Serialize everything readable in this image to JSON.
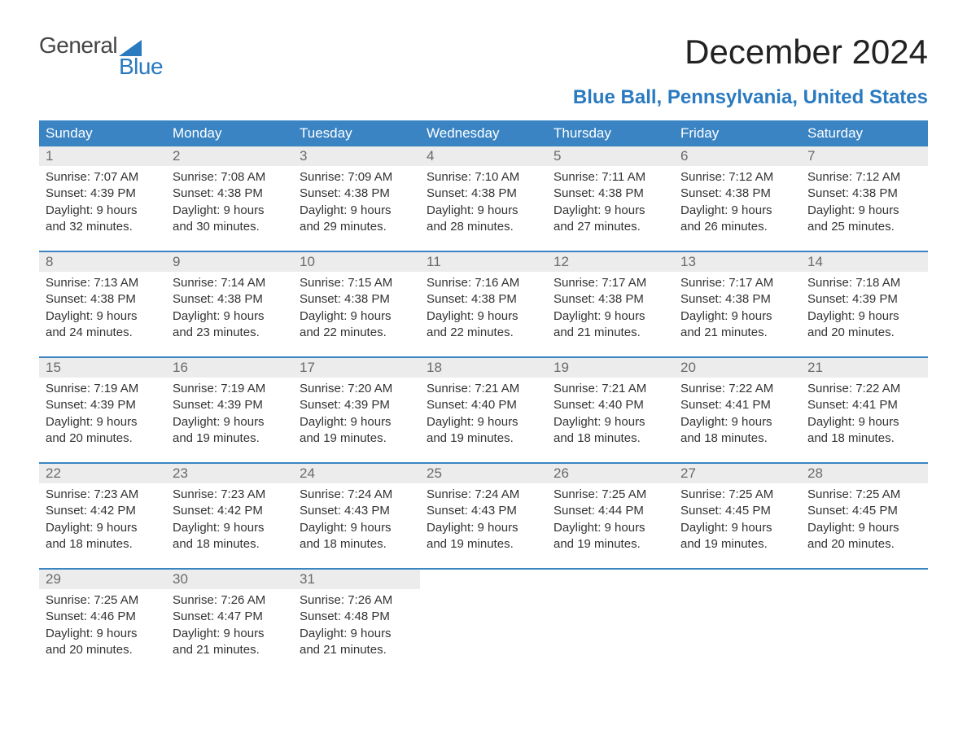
{
  "brand": {
    "top": "General",
    "bottom": "Blue",
    "brand_color": "#2a7ac0"
  },
  "title": "December 2024",
  "subtitle": "Blue Ball, Pennsylvania, United States",
  "colors": {
    "header_bg": "#3a84c4",
    "header_text": "#ffffff",
    "daynum_bg": "#ececec",
    "daynum_text": "#6a6a6a",
    "body_text": "#333333",
    "week_border": "#3a84c4"
  },
  "typography": {
    "title_fontsize": 42,
    "subtitle_fontsize": 24,
    "header_fontsize": 17,
    "daynum_fontsize": 17,
    "body_fontsize": 15,
    "logo_fontsize": 28
  },
  "weekdays": [
    "Sunday",
    "Monday",
    "Tuesday",
    "Wednesday",
    "Thursday",
    "Friday",
    "Saturday"
  ],
  "weeks": [
    [
      {
        "n": "1",
        "sr": "Sunrise: 7:07 AM",
        "ss": "Sunset: 4:39 PM",
        "d1": "Daylight: 9 hours",
        "d2": "and 32 minutes."
      },
      {
        "n": "2",
        "sr": "Sunrise: 7:08 AM",
        "ss": "Sunset: 4:38 PM",
        "d1": "Daylight: 9 hours",
        "d2": "and 30 minutes."
      },
      {
        "n": "3",
        "sr": "Sunrise: 7:09 AM",
        "ss": "Sunset: 4:38 PM",
        "d1": "Daylight: 9 hours",
        "d2": "and 29 minutes."
      },
      {
        "n": "4",
        "sr": "Sunrise: 7:10 AM",
        "ss": "Sunset: 4:38 PM",
        "d1": "Daylight: 9 hours",
        "d2": "and 28 minutes."
      },
      {
        "n": "5",
        "sr": "Sunrise: 7:11 AM",
        "ss": "Sunset: 4:38 PM",
        "d1": "Daylight: 9 hours",
        "d2": "and 27 minutes."
      },
      {
        "n": "6",
        "sr": "Sunrise: 7:12 AM",
        "ss": "Sunset: 4:38 PM",
        "d1": "Daylight: 9 hours",
        "d2": "and 26 minutes."
      },
      {
        "n": "7",
        "sr": "Sunrise: 7:12 AM",
        "ss": "Sunset: 4:38 PM",
        "d1": "Daylight: 9 hours",
        "d2": "and 25 minutes."
      }
    ],
    [
      {
        "n": "8",
        "sr": "Sunrise: 7:13 AM",
        "ss": "Sunset: 4:38 PM",
        "d1": "Daylight: 9 hours",
        "d2": "and 24 minutes."
      },
      {
        "n": "9",
        "sr": "Sunrise: 7:14 AM",
        "ss": "Sunset: 4:38 PM",
        "d1": "Daylight: 9 hours",
        "d2": "and 23 minutes."
      },
      {
        "n": "10",
        "sr": "Sunrise: 7:15 AM",
        "ss": "Sunset: 4:38 PM",
        "d1": "Daylight: 9 hours",
        "d2": "and 22 minutes."
      },
      {
        "n": "11",
        "sr": "Sunrise: 7:16 AM",
        "ss": "Sunset: 4:38 PM",
        "d1": "Daylight: 9 hours",
        "d2": "and 22 minutes."
      },
      {
        "n": "12",
        "sr": "Sunrise: 7:17 AM",
        "ss": "Sunset: 4:38 PM",
        "d1": "Daylight: 9 hours",
        "d2": "and 21 minutes."
      },
      {
        "n": "13",
        "sr": "Sunrise: 7:17 AM",
        "ss": "Sunset: 4:38 PM",
        "d1": "Daylight: 9 hours",
        "d2": "and 21 minutes."
      },
      {
        "n": "14",
        "sr": "Sunrise: 7:18 AM",
        "ss": "Sunset: 4:39 PM",
        "d1": "Daylight: 9 hours",
        "d2": "and 20 minutes."
      }
    ],
    [
      {
        "n": "15",
        "sr": "Sunrise: 7:19 AM",
        "ss": "Sunset: 4:39 PM",
        "d1": "Daylight: 9 hours",
        "d2": "and 20 minutes."
      },
      {
        "n": "16",
        "sr": "Sunrise: 7:19 AM",
        "ss": "Sunset: 4:39 PM",
        "d1": "Daylight: 9 hours",
        "d2": "and 19 minutes."
      },
      {
        "n": "17",
        "sr": "Sunrise: 7:20 AM",
        "ss": "Sunset: 4:39 PM",
        "d1": "Daylight: 9 hours",
        "d2": "and 19 minutes."
      },
      {
        "n": "18",
        "sr": "Sunrise: 7:21 AM",
        "ss": "Sunset: 4:40 PM",
        "d1": "Daylight: 9 hours",
        "d2": "and 19 minutes."
      },
      {
        "n": "19",
        "sr": "Sunrise: 7:21 AM",
        "ss": "Sunset: 4:40 PM",
        "d1": "Daylight: 9 hours",
        "d2": "and 18 minutes."
      },
      {
        "n": "20",
        "sr": "Sunrise: 7:22 AM",
        "ss": "Sunset: 4:41 PM",
        "d1": "Daylight: 9 hours",
        "d2": "and 18 minutes."
      },
      {
        "n": "21",
        "sr": "Sunrise: 7:22 AM",
        "ss": "Sunset: 4:41 PM",
        "d1": "Daylight: 9 hours",
        "d2": "and 18 minutes."
      }
    ],
    [
      {
        "n": "22",
        "sr": "Sunrise: 7:23 AM",
        "ss": "Sunset: 4:42 PM",
        "d1": "Daylight: 9 hours",
        "d2": "and 18 minutes."
      },
      {
        "n": "23",
        "sr": "Sunrise: 7:23 AM",
        "ss": "Sunset: 4:42 PM",
        "d1": "Daylight: 9 hours",
        "d2": "and 18 minutes."
      },
      {
        "n": "24",
        "sr": "Sunrise: 7:24 AM",
        "ss": "Sunset: 4:43 PM",
        "d1": "Daylight: 9 hours",
        "d2": "and 18 minutes."
      },
      {
        "n": "25",
        "sr": "Sunrise: 7:24 AM",
        "ss": "Sunset: 4:43 PM",
        "d1": "Daylight: 9 hours",
        "d2": "and 19 minutes."
      },
      {
        "n": "26",
        "sr": "Sunrise: 7:25 AM",
        "ss": "Sunset: 4:44 PM",
        "d1": "Daylight: 9 hours",
        "d2": "and 19 minutes."
      },
      {
        "n": "27",
        "sr": "Sunrise: 7:25 AM",
        "ss": "Sunset: 4:45 PM",
        "d1": "Daylight: 9 hours",
        "d2": "and 19 minutes."
      },
      {
        "n": "28",
        "sr": "Sunrise: 7:25 AM",
        "ss": "Sunset: 4:45 PM",
        "d1": "Daylight: 9 hours",
        "d2": "and 20 minutes."
      }
    ],
    [
      {
        "n": "29",
        "sr": "Sunrise: 7:25 AM",
        "ss": "Sunset: 4:46 PM",
        "d1": "Daylight: 9 hours",
        "d2": "and 20 minutes."
      },
      {
        "n": "30",
        "sr": "Sunrise: 7:26 AM",
        "ss": "Sunset: 4:47 PM",
        "d1": "Daylight: 9 hours",
        "d2": "and 21 minutes."
      },
      {
        "n": "31",
        "sr": "Sunrise: 7:26 AM",
        "ss": "Sunset: 4:48 PM",
        "d1": "Daylight: 9 hours",
        "d2": "and 21 minutes."
      },
      null,
      null,
      null,
      null
    ]
  ]
}
